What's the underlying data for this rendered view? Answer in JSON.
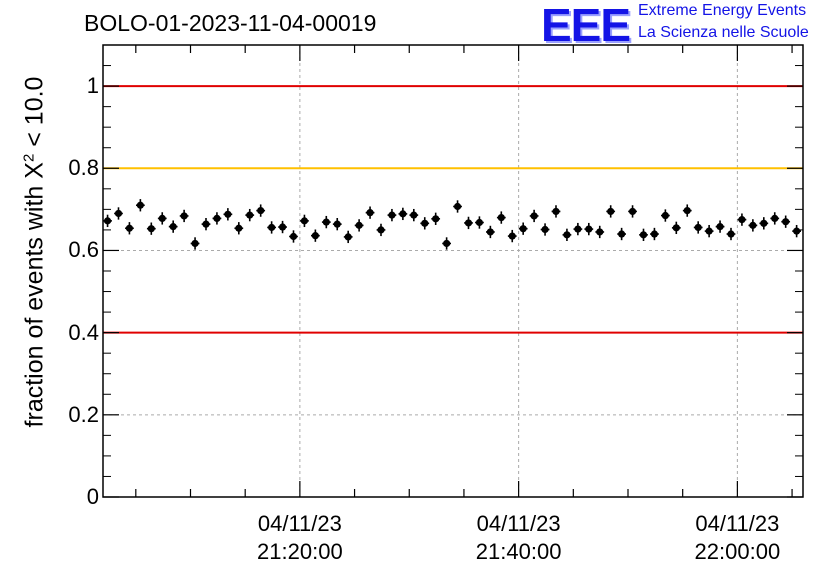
{
  "title": "BOLO-01-2023-11-04-00019",
  "logo": {
    "mark": "EEE",
    "line1": "Extreme Energy Events",
    "line2": "La Scienza nelle Scuole"
  },
  "chart_data": {
    "type": "scatter",
    "title": "BOLO-01-2023-11-04-00019",
    "ylabel_parts": {
      "pre": "fraction of events with X",
      "sup": "2",
      "post": " < 10.0"
    },
    "xlabel": "",
    "x_unit": "minutes",
    "xlim": [
      "2023-11-04 21:02:00",
      "2023-11-04 22:06:00"
    ],
    "ylim": [
      0,
      1.1
    ],
    "y_ticks": [
      "0",
      "0.2",
      "0.4",
      "0.6",
      "0.8",
      "1"
    ],
    "x_ticks": [
      {
        "time": "2023-11-04 21:20:00",
        "date_label": "04/11/23",
        "time_label": "21:20:00"
      },
      {
        "time": "2023-11-04 21:40:00",
        "date_label": "04/11/23",
        "time_label": "21:40:00"
      },
      {
        "time": "2023-11-04 22:00:00",
        "date_label": "04/11/23",
        "time_label": "22:00:00"
      }
    ],
    "grid": true,
    "reference_lines": [
      {
        "y": 1.0,
        "color": "#e00000"
      },
      {
        "y": 0.8,
        "color": "#ffc000"
      },
      {
        "y": 0.4,
        "color": "#e00000"
      }
    ],
    "marker_color": "#000000",
    "y_error": 0.015,
    "x_error_minutes": 0.4,
    "points": [
      {
        "x": "21:02:25",
        "y": 0.672
      },
      {
        "x": "21:03:25",
        "y": 0.69
      },
      {
        "x": "21:04:25",
        "y": 0.654
      },
      {
        "x": "21:05:25",
        "y": 0.71
      },
      {
        "x": "21:06:25",
        "y": 0.653
      },
      {
        "x": "21:07:25",
        "y": 0.678
      },
      {
        "x": "21:08:25",
        "y": 0.658
      },
      {
        "x": "21:09:25",
        "y": 0.684
      },
      {
        "x": "21:10:25",
        "y": 0.617
      },
      {
        "x": "21:11:25",
        "y": 0.664
      },
      {
        "x": "21:12:25",
        "y": 0.678
      },
      {
        "x": "21:13:25",
        "y": 0.688
      },
      {
        "x": "21:14:25",
        "y": 0.654
      },
      {
        "x": "21:15:25",
        "y": 0.686
      },
      {
        "x": "21:16:25",
        "y": 0.697
      },
      {
        "x": "21:17:25",
        "y": 0.656
      },
      {
        "x": "21:18:25",
        "y": 0.657
      },
      {
        "x": "21:19:25",
        "y": 0.634
      },
      {
        "x": "21:20:25",
        "y": 0.672
      },
      {
        "x": "21:21:25",
        "y": 0.636
      },
      {
        "x": "21:22:25",
        "y": 0.669
      },
      {
        "x": "21:23:25",
        "y": 0.664
      },
      {
        "x": "21:24:25",
        "y": 0.633
      },
      {
        "x": "21:25:25",
        "y": 0.661
      },
      {
        "x": "21:26:25",
        "y": 0.692
      },
      {
        "x": "21:27:25",
        "y": 0.65
      },
      {
        "x": "21:28:25",
        "y": 0.686
      },
      {
        "x": "21:29:25",
        "y": 0.689
      },
      {
        "x": "21:30:25",
        "y": 0.686
      },
      {
        "x": "21:31:25",
        "y": 0.666
      },
      {
        "x": "21:32:25",
        "y": 0.677
      },
      {
        "x": "21:33:25",
        "y": 0.617
      },
      {
        "x": "21:34:25",
        "y": 0.707
      },
      {
        "x": "21:35:25",
        "y": 0.667
      },
      {
        "x": "21:36:25",
        "y": 0.668
      },
      {
        "x": "21:37:25",
        "y": 0.645
      },
      {
        "x": "21:38:25",
        "y": 0.68
      },
      {
        "x": "21:39:25",
        "y": 0.635
      },
      {
        "x": "21:40:25",
        "y": 0.653
      },
      {
        "x": "21:41:25",
        "y": 0.684
      },
      {
        "x": "21:42:25",
        "y": 0.651
      },
      {
        "x": "21:43:25",
        "y": 0.695
      },
      {
        "x": "21:44:25",
        "y": 0.638
      },
      {
        "x": "21:45:25",
        "y": 0.652
      },
      {
        "x": "21:46:25",
        "y": 0.652
      },
      {
        "x": "21:47:25",
        "y": 0.645
      },
      {
        "x": "21:48:25",
        "y": 0.695
      },
      {
        "x": "21:49:25",
        "y": 0.64
      },
      {
        "x": "21:50:25",
        "y": 0.695
      },
      {
        "x": "21:51:25",
        "y": 0.638
      },
      {
        "x": "21:52:25",
        "y": 0.64
      },
      {
        "x": "21:53:25",
        "y": 0.685
      },
      {
        "x": "21:54:25",
        "y": 0.655
      },
      {
        "x": "21:55:25",
        "y": 0.697
      },
      {
        "x": "21:56:25",
        "y": 0.656
      },
      {
        "x": "21:57:25",
        "y": 0.647
      },
      {
        "x": "21:58:25",
        "y": 0.658
      },
      {
        "x": "21:59:25",
        "y": 0.64
      },
      {
        "x": "22:00:25",
        "y": 0.675
      },
      {
        "x": "22:01:25",
        "y": 0.661
      },
      {
        "x": "22:02:25",
        "y": 0.666
      },
      {
        "x": "22:03:25",
        "y": 0.678
      },
      {
        "x": "22:04:25",
        "y": 0.67
      },
      {
        "x": "22:05:25",
        "y": 0.647
      }
    ]
  }
}
